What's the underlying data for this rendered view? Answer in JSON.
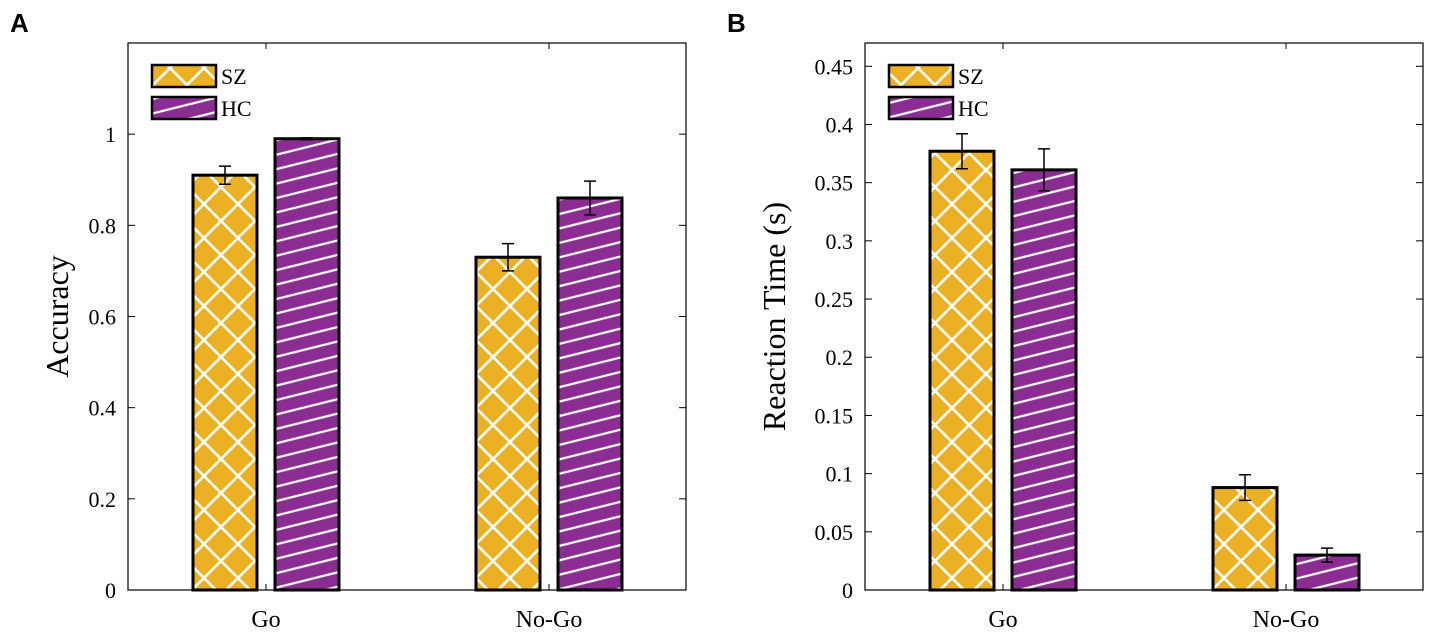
{
  "chart_data": [
    {
      "type": "bar",
      "panel": "A",
      "title": "",
      "categories": [
        "Go",
        "No-Go"
      ],
      "series": [
        {
          "name": "SZ",
          "values": [
            0.91,
            0.73
          ],
          "errors": [
            0.02,
            0.03
          ],
          "color": "#EBB024",
          "pattern": "crosshatch"
        },
        {
          "name": "HC",
          "values": [
            0.99,
            0.86
          ],
          "errors": [
            0.002,
            0.037
          ],
          "color": "#8B2C93",
          "pattern": "diagonal"
        }
      ],
      "xlabel": "",
      "ylabel": "Accuracy",
      "ylim": [
        0,
        1.2
      ],
      "yticks": [
        0,
        0.2,
        0.4,
        0.6,
        0.8,
        1
      ],
      "ytick_labels": [
        "0",
        "0.2",
        "0.4",
        "0.6",
        "0.8",
        "1"
      ],
      "legend": "top-left",
      "grid": false
    },
    {
      "type": "bar",
      "panel": "B",
      "title": "",
      "categories": [
        "Go",
        "No-Go"
      ],
      "series": [
        {
          "name": "SZ",
          "values": [
            0.377,
            0.088
          ],
          "errors": [
            0.015,
            0.011
          ],
          "color": "#EBB024",
          "pattern": "crosshatch"
        },
        {
          "name": "HC",
          "values": [
            0.361,
            0.03
          ],
          "errors": [
            0.018,
            0.006
          ],
          "color": "#8B2C93",
          "pattern": "diagonal"
        }
      ],
      "xlabel": "",
      "ylabel": "Reaction Time (s)",
      "ylim": [
        0,
        0.47
      ],
      "yticks": [
        0,
        0.05,
        0.1,
        0.15,
        0.2,
        0.25,
        0.3,
        0.35,
        0.4,
        0.45
      ],
      "ytick_labels": [
        "0",
        "0.05",
        "0.1",
        "0.15",
        "0.2",
        "0.25",
        "0.3",
        "0.35",
        "0.4",
        "0.45"
      ],
      "legend": "top-left",
      "grid": false
    }
  ]
}
